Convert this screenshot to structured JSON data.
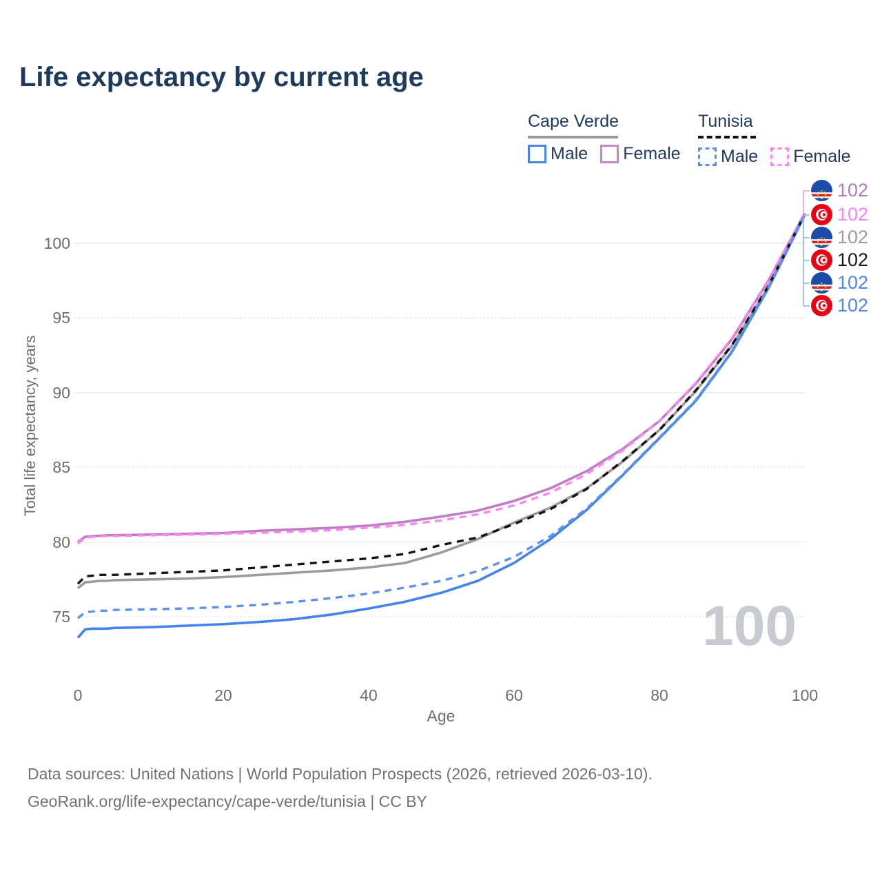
{
  "title": "Life expectancy by current age",
  "legend": {
    "groups": [
      {
        "name": "Cape Verde",
        "line_style": "solid",
        "underline_color": "#9a9a9a",
        "items": [
          {
            "label": "Male",
            "color": "#4a84db",
            "dashed": false
          },
          {
            "label": "Female",
            "color": "#c489c2",
            "dashed": false
          }
        ]
      },
      {
        "name": "Tunisia",
        "line_style": "dashed",
        "underline_color": "#111111",
        "items": [
          {
            "label": "Male",
            "color": "#5b8de6",
            "dashed": true
          },
          {
            "label": "Female",
            "color": "#fc86f0",
            "dashed": true
          }
        ]
      }
    ]
  },
  "chart_data": {
    "type": "line",
    "title": "Life expectancy by current age",
    "xlabel": "Age",
    "ylabel": "Total life expectancy, years",
    "xlim": [
      0,
      100
    ],
    "ylim": [
      73,
      103
    ],
    "x_ticks": [
      0,
      20,
      40,
      60,
      80,
      100
    ],
    "y_ticks": [
      75,
      80,
      85,
      90,
      95,
      100
    ],
    "grid": "horizontal-only",
    "legend_position": "top-right",
    "x": [
      0,
      1,
      2,
      3,
      4,
      5,
      10,
      15,
      20,
      25,
      30,
      35,
      40,
      45,
      50,
      55,
      60,
      65,
      70,
      75,
      80,
      85,
      90,
      95,
      100
    ],
    "series": [
      {
        "name": "Cape Verde (both sexes)",
        "country": "cape-verde",
        "color": "#9b9b9b",
        "dashed": false,
        "values": [
          76.9,
          77.3,
          77.35,
          77.4,
          77.4,
          77.45,
          77.5,
          77.55,
          77.65,
          77.8,
          77.95,
          78.1,
          78.3,
          78.6,
          79.3,
          80.2,
          81.3,
          82.3,
          83.6,
          85.4,
          87.5,
          90.1,
          93.15,
          97.1,
          101.9
        ]
      },
      {
        "name": "Cape Verde Female",
        "country": "cape-verde",
        "color": "#bf7ec3",
        "dashed": false,
        "values": [
          80.0,
          80.35,
          80.4,
          80.42,
          80.45,
          80.45,
          80.5,
          80.55,
          80.6,
          80.75,
          80.85,
          80.95,
          81.1,
          81.35,
          81.7,
          82.1,
          82.75,
          83.6,
          84.75,
          86.25,
          88.1,
          90.6,
          93.6,
          97.5,
          102.0
        ]
      },
      {
        "name": "Cape Verde Male",
        "country": "cape-verde",
        "color": "#4484ea",
        "dashed": false,
        "values": [
          73.6,
          74.15,
          74.2,
          74.2,
          74.2,
          74.25,
          74.3,
          74.4,
          74.5,
          74.65,
          74.85,
          75.15,
          75.55,
          76.0,
          76.6,
          77.4,
          78.6,
          80.2,
          82.15,
          84.5,
          86.95,
          89.45,
          92.75,
          97.0,
          101.9
        ]
      },
      {
        "name": "Tunisia (both sexes)",
        "country": "tunisia",
        "color": "#141414",
        "dashed": true,
        "values": [
          77.2,
          77.7,
          77.75,
          77.8,
          77.8,
          77.8,
          77.9,
          78.0,
          78.1,
          78.3,
          78.5,
          78.7,
          78.9,
          79.2,
          79.8,
          80.3,
          81.2,
          82.2,
          83.55,
          85.45,
          87.5,
          90.15,
          93.2,
          97.15,
          101.95
        ]
      },
      {
        "name": "Tunisia Female",
        "country": "tunisia",
        "color": "#fd86f2",
        "dashed": true,
        "values": [
          79.9,
          80.3,
          80.35,
          80.38,
          80.4,
          80.4,
          80.45,
          80.5,
          80.55,
          80.62,
          80.7,
          80.8,
          80.95,
          81.15,
          81.45,
          81.85,
          82.45,
          83.3,
          84.55,
          86.15,
          88.1,
          90.65,
          93.65,
          97.55,
          102.05
        ]
      },
      {
        "name": "Tunisia Male",
        "country": "tunisia",
        "color": "#5e90ee",
        "dashed": true,
        "values": [
          74.9,
          75.3,
          75.35,
          75.4,
          75.4,
          75.45,
          75.5,
          75.55,
          75.65,
          75.8,
          76.0,
          76.25,
          76.55,
          76.95,
          77.4,
          78.05,
          79.0,
          80.4,
          82.25,
          84.55,
          87.0,
          89.5,
          92.8,
          97.05,
          101.95
        ]
      }
    ],
    "end_labels": [
      {
        "value": "102",
        "color": "#b279ba",
        "flag": "cape-verde",
        "series": "Cape Verde Female"
      },
      {
        "value": "102",
        "color": "#fb80f1",
        "flag": "tunisia",
        "series": "Tunisia Female"
      },
      {
        "value": "102",
        "color": "#9b9b9b",
        "flag": "cape-verde",
        "series": "Cape Verde (both sexes)"
      },
      {
        "value": "102",
        "color": "#1a1a1a",
        "flag": "tunisia",
        "series": "Tunisia (both sexes)"
      },
      {
        "value": "102",
        "color": "#4f87e8",
        "flag": "cape-verde",
        "series": "Cape Verde Male"
      },
      {
        "value": "102",
        "color": "#4f87e8",
        "flag": "tunisia",
        "series": "Tunisia Male"
      }
    ],
    "hovered_age_watermark": "100"
  },
  "footer": {
    "line1": "Data sources: United Nations | World Population Prospects (2026, retrieved 2026-03-10).",
    "line2": "GeoRank.org/life-expectancy/cape-verde/tunisia | CC BY"
  }
}
